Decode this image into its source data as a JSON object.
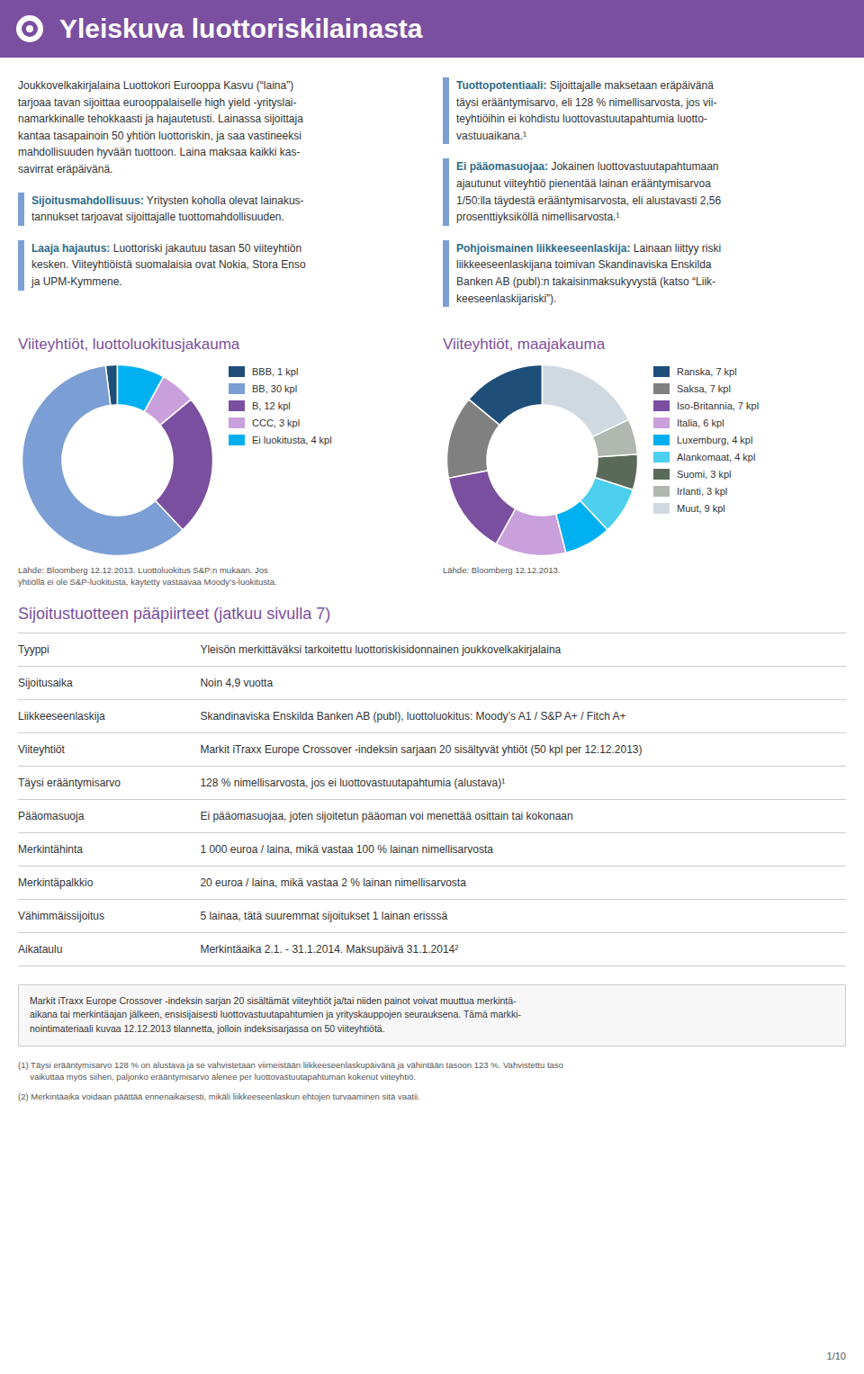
{
  "title": "Yleiskuva luottoriskilainasta",
  "annotations": [
    {
      "text": "Joukkovelkakirjalaina Luottokori Eurooppa Kasvu (“laina”)\ntarjoaa tavan sijoittaa eurooppalaiselle high yield -yrityslai-\nnamarkkinalle tehokkaasti ja hajautetusti. Lainassa sijoittaja\nkantaa tasapainoin 50 yhtiön luottoriskin, ja saa vastineeksi\nmahdollisuuden hyvään tuottoon. Laina maksaa kaikki kas-\nsavirrat eräpäivänä."
    },
    {
      "bold": "Sijoitusmahdollisuus:",
      "text": "Yritysten koholla olevat lainakus-\ntannukset tarjoavat sijoittajalle tuottomahdollisuuden."
    },
    {
      "bold": "Laaja hajautus:",
      "text": "Luottoriski jakautuu tasan 50 viiteyhtiön\nkesken. Viiteyhtiöistä suomalaisia ovat Nokia, Stora Enso\nja UPM-Kymmene."
    },
    {
      "bold": "Tuottopotentiaali:",
      "text": "Sijoittajalle maksetaan eräpäivänä\ntäysi erääntymisarvo, eli 128 % nimellisarvosta, jos vii-\nteyhtiöihin ei kohdistu luottovastuutapahtumia luotto-\nvastuuaikana.¹"
    },
    {
      "bold": "Ei pääomasuojaa:",
      "text": "Jokainen luottovastuutapahtumaan\najautunut viiteyhtiö pienentää lainan erääntymisarvoa\n1/50:lla täydestä erääntymisarvosta, eli alustavasti 2,56\nprosenttiyksiköllä nimellisarvosta.¹"
    },
    {
      "bold": "Pohjoismainen liikkeeseenlaskija:",
      "text": "Lainaan liittyy riski\nliikkeeseenlaskijana toimivan Skandinaviska Enskilda\nBanken AB (publ):n takaisinmaksukyvystä (katso “Liik-\nkeeseenlaskijariski”)."
    }
  ],
  "chart_data": [
    {
      "type": "pie",
      "title": "Viiteyhtiöt, luottoluokitusjakauma",
      "categories": [
        "BBB, 1 kpl",
        "BB, 30 kpl",
        "B, 12 kpl",
        "CCC, 3 kpl",
        "Ei luokitusta, 4 kpl"
      ],
      "values": [
        1,
        30,
        12,
        3,
        4
      ],
      "colors": [
        "#1f4e79",
        "#7b9fd4",
        "#7b4fa0",
        "#c9a0dc",
        "#00b0f0"
      ],
      "legend": "right",
      "annotations": [
        "Lähde: Bloomberg 12.12.2013. Luottoluokitus S&P:n mukaan. Jos\nyhtiöllä ei ole S&P-luokitusta, käytetty vastaavaa Moody’s-luokitusta."
      ]
    },
    {
      "type": "pie",
      "title": "Viiteyhtiöt, maajakauma",
      "categories": [
        "Ranska, 7 kpl",
        "Saksa, 7 kpl",
        "Iso-Britannia, 7 kpl",
        "Italia, 6 kpl",
        "Luxemburg, 4 kpl",
        "Alankomaat, 4 kpl",
        "Suomi, 3 kpl",
        "Irlanti, 3 kpl",
        "Muut, 9 kpl"
      ],
      "values": [
        7,
        7,
        7,
        6,
        4,
        4,
        3,
        3,
        9
      ],
      "colors": [
        "#1f4e79",
        "#808080",
        "#7b4fa0",
        "#c9a0dc",
        "#00b0f0",
        "#4dcfee",
        "#5a6a5a",
        "#b0b8b0",
        "#d0d8e0"
      ],
      "legend": "right",
      "annotations": [
        "Lähde: Bloomberg 12.12.2013."
      ]
    }
  ],
  "table": {
    "title": "Sijoitustuotteen pääpiirteet (jatkuu sivulla 7)",
    "rows": [
      [
        "Tyyppi",
        "Yleisön merkittäväksi tarkoitettu luottoriskisidonnainen joukkovelkakirjalaina"
      ],
      [
        "Sijoitusaika",
        "Noin 4,9 vuotta"
      ],
      [
        "Liikkeeseenlaskija",
        "Skandinaviska Enskilda Banken AB (publ), luottoluokitus: Moody’s A1 / S&P A+ / Fitch A+"
      ],
      [
        "Viiteyhtiöt",
        "Markit iTraxx Europe Crossover -indeksin sarjaan 20 sisältyvät yhtiöt (50 kpl per 12.12.2013)"
      ],
      [
        "Täysi erääntymisarvo",
        "128 % nimellisarvosta, jos ei luottovastuutapahtumia (alustava)¹"
      ],
      [
        "Pääomasuoja",
        "Ei pääomasuojaa, joten sijoitetun pääoman voi menettää osittain tai kokonaan"
      ],
      [
        "Merkintähinta",
        "1 000 euroa / laina, mikä vastaa 100 % lainan nimellisarvosta"
      ],
      [
        "Merkintäpalkkio",
        "20 euroa / laina, mikä vastaa 2 % lainan nimellisarvosta"
      ],
      [
        "Vähimmäissijoitus",
        "5 lainaa, tätä suuremmat sijoitukset 1 lainan erisssä"
      ],
      [
        "Aikataulu",
        "Merkintäaika 2.1. - 31.1.2014. Maksupäivä 31.1.2014²"
      ]
    ]
  },
  "notes": {
    "box": "Markit iTraxx Europe Crossover -indeksin sarjan 20 sisältämät viiteyhtiöt ja/tai niiden painot voivat muuttua merkintä-\naikana tai merkintäajan jälkeen, ensisijaisesti luottovastuutapahtumien ja yrityskauppojen seurauksena. Tämä markki-\nnointimateriaali kuvaa 12.12.2013 tilannetta, jolloin indeksisarjassa on 50 viiteyhtiötä.",
    "footnotes": [
      "(1) Täysi erääntymisarvo 128 % on alustava ja se vahvistetaan viimeistään liikkeeseenlaskupäivänä ja vähintään tasoon 123 %. Vahvistettu taso\n     vaikuttaa myös siihen, paljonko erääntymisarvo alenee per luottovastuutapahtuman kokenut viiteyhtiö.",
      "(2) Merkintäaika voidaan päättää ennenaikaisesti, mikäli liikkeeseenlaskun ehtojen turvaaminen sitä vaatii."
    ],
    "page": "1/10"
  }
}
